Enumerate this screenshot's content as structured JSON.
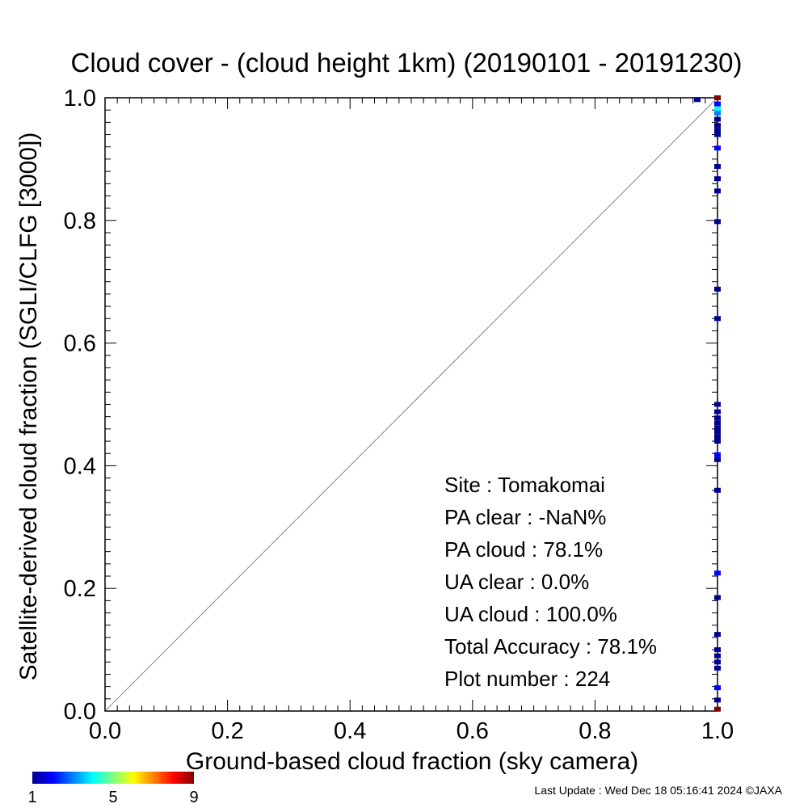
{
  "chart_data": {
    "type": "scatter",
    "title": "Cloud cover - (cloud height 1km)  (20190101 - 20191230)",
    "xlabel": "Ground-based cloud fraction (sky camera)",
    "ylabel": "Satellite-derived cloud fraction (SGLI/CLFG [3000])",
    "xlim": [
      0.0,
      1.0
    ],
    "ylim": [
      0.0,
      1.0
    ],
    "x_ticks": [
      "0.0",
      "0.2",
      "0.4",
      "0.6",
      "0.8",
      "1.0"
    ],
    "y_ticks": [
      "0.0",
      "0.2",
      "0.4",
      "0.6",
      "0.8",
      "1.0"
    ],
    "reference_line": "y = x",
    "grid": false,
    "points": [
      {
        "x": 0.967,
        "y": 0.997,
        "count": 1
      },
      {
        "x": 1.0,
        "y": 1.0,
        "count": 9
      },
      {
        "x": 1.0,
        "y": 0.99,
        "count": 2
      },
      {
        "x": 1.0,
        "y": 0.982,
        "count": 4
      },
      {
        "x": 1.0,
        "y": 0.975,
        "count": 3
      },
      {
        "x": 1.0,
        "y": 0.965,
        "count": 1
      },
      {
        "x": 1.0,
        "y": 0.955,
        "count": 1
      },
      {
        "x": 1.0,
        "y": 0.947,
        "count": 1
      },
      {
        "x": 1.0,
        "y": 0.94,
        "count": 1
      },
      {
        "x": 1.0,
        "y": 0.918,
        "count": 2
      },
      {
        "x": 1.0,
        "y": 0.888,
        "count": 1
      },
      {
        "x": 1.0,
        "y": 0.868,
        "count": 1
      },
      {
        "x": 1.0,
        "y": 0.848,
        "count": 1
      },
      {
        "x": 1.0,
        "y": 0.798,
        "count": 1
      },
      {
        "x": 1.0,
        "y": 0.688,
        "count": 1
      },
      {
        "x": 1.0,
        "y": 0.64,
        "count": 1
      },
      {
        "x": 1.0,
        "y": 0.5,
        "count": 1
      },
      {
        "x": 1.0,
        "y": 0.488,
        "count": 1
      },
      {
        "x": 1.0,
        "y": 0.478,
        "count": 1
      },
      {
        "x": 1.0,
        "y": 0.47,
        "count": 1
      },
      {
        "x": 1.0,
        "y": 0.462,
        "count": 1
      },
      {
        "x": 1.0,
        "y": 0.455,
        "count": 1
      },
      {
        "x": 1.0,
        "y": 0.447,
        "count": 1
      },
      {
        "x": 1.0,
        "y": 0.44,
        "count": 1
      },
      {
        "x": 1.0,
        "y": 0.418,
        "count": 2
      },
      {
        "x": 1.0,
        "y": 0.41,
        "count": 1
      },
      {
        "x": 1.0,
        "y": 0.36,
        "count": 1
      },
      {
        "x": 1.0,
        "y": 0.225,
        "count": 2
      },
      {
        "x": 1.0,
        "y": 0.185,
        "count": 1
      },
      {
        "x": 1.0,
        "y": 0.125,
        "count": 1
      },
      {
        "x": 1.0,
        "y": 0.1,
        "count": 1
      },
      {
        "x": 1.0,
        "y": 0.09,
        "count": 1
      },
      {
        "x": 1.0,
        "y": 0.08,
        "count": 1
      },
      {
        "x": 1.0,
        "y": 0.07,
        "count": 1
      },
      {
        "x": 1.0,
        "y": 0.038,
        "count": 2
      },
      {
        "x": 1.0,
        "y": 0.018,
        "count": 1
      },
      {
        "x": 1.0,
        "y": 0.003,
        "count": 9
      }
    ],
    "colorbar": {
      "min": 1,
      "max": 9,
      "tick_labels": [
        "1",
        "5",
        "9"
      ],
      "colors": [
        "#00008f",
        "#0000ff",
        "#0080ff",
        "#00ffff",
        "#80ff80",
        "#ffff00",
        "#ff8000",
        "#ff0000",
        "#800000"
      ]
    },
    "stats": [
      {
        "label": "Site : Tomakomai",
        "value": ""
      },
      {
        "label": "PA clear :",
        "value": "-NaN%"
      },
      {
        "label": "PA cloud :",
        "value": "78.1%"
      },
      {
        "label": "UA clear :",
        "value": "0.0%"
      },
      {
        "label": "UA cloud :",
        "value": "100.0%"
      },
      {
        "label": "Total Accuracy :",
        "value": "78.1%"
      },
      {
        "label": "Plot number :",
        "value": "224"
      }
    ]
  },
  "footer": "Last Update : Wed Dec 18 05:16:41 2024  ©JAXA"
}
